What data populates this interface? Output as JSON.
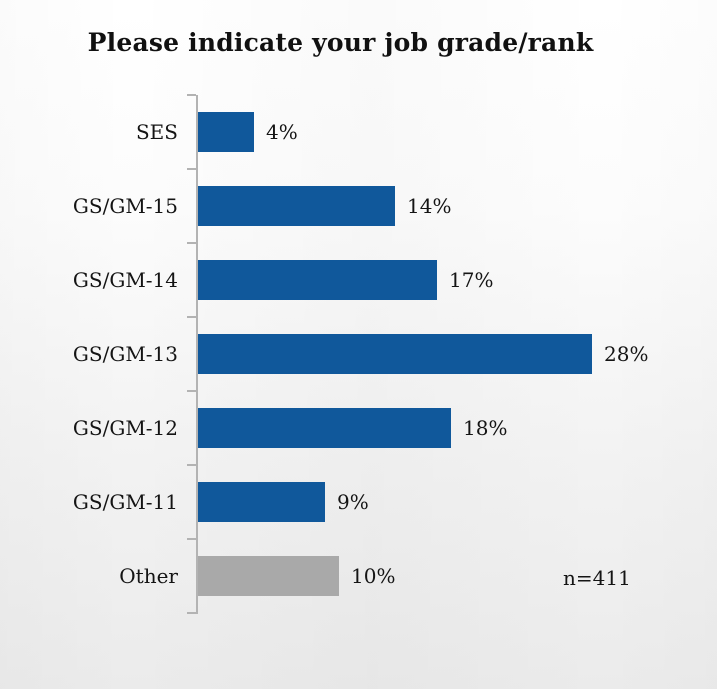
{
  "chart_data": {
    "type": "bar",
    "orientation": "horizontal",
    "title": "Please indicate your job grade/rank",
    "categories": [
      "SES",
      "GS/GM-15",
      "GS/GM-14",
      "GS/GM-13",
      "GS/GM-12",
      "GS/GM-11",
      "Other"
    ],
    "values": [
      4,
      14,
      17,
      28,
      18,
      9,
      10
    ],
    "value_labels": [
      "4%",
      "14%",
      "17%",
      "28%",
      "18%",
      "9%",
      "10%"
    ],
    "bar_colors": [
      "#10589b",
      "#10589b",
      "#10589b",
      "#10589b",
      "#10589b",
      "#10589b",
      "#a9a9a9"
    ],
    "annotation": "n=411",
    "xlabel": "",
    "ylabel": "",
    "xlim": [
      0,
      33
    ],
    "grid": false,
    "legend": "none",
    "axis_color": "#b3b3b3",
    "value_label_position": "end-of-bar"
  },
  "colors": {
    "bar_blue": "#10589b",
    "bar_gray": "#a9a9a9",
    "axis": "#b3b3b3",
    "text": "#141414",
    "background_top": "#ffffff",
    "background_bottom": "#ebebeb"
  }
}
